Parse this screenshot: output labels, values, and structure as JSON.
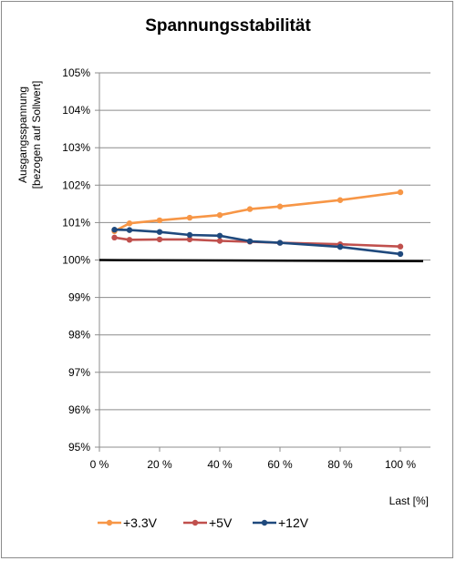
{
  "chart_data": {
    "type": "line",
    "title": "Spannungsstabilität",
    "xlabel": "Last [%]",
    "ylabel_lines": [
      "Ausgangsspannung",
      "[bezogen auf Sollwert]"
    ],
    "xlim": [
      0,
      110
    ],
    "ylim": [
      95,
      105
    ],
    "x_ticks": [
      0,
      20,
      40,
      60,
      80,
      100
    ],
    "x_tick_labels": [
      "0 %",
      "20 %",
      "40 %",
      "60 %",
      "80 %",
      "100 %"
    ],
    "y_ticks": [
      95,
      96,
      97,
      98,
      99,
      100,
      101,
      102,
      103,
      104,
      105
    ],
    "y_tick_labels": [
      "95%",
      "96%",
      "97%",
      "98%",
      "99%",
      "100%",
      "101%",
      "102%",
      "103%",
      "104%",
      "105%"
    ],
    "grid": "horizontal",
    "legend_position": "bottom-left",
    "reference_line": {
      "x": [
        0,
        110
      ],
      "y": [
        100.0,
        99.97
      ],
      "color": "#000000"
    },
    "series": [
      {
        "name": "+3.3V",
        "color": "#f79646",
        "x": [
          5,
          10,
          20,
          30,
          40,
          50,
          60,
          80,
          100
        ],
        "y": [
          100.77,
          100.98,
          101.06,
          101.13,
          101.2,
          101.36,
          101.43,
          101.6,
          101.81
        ]
      },
      {
        "name": "+5V",
        "color": "#c0504d",
        "x": [
          5,
          10,
          20,
          30,
          40,
          50,
          60,
          80,
          100
        ],
        "y": [
          100.6,
          100.54,
          100.55,
          100.55,
          100.51,
          100.49,
          100.46,
          100.42,
          100.36
        ]
      },
      {
        "name": "+12V",
        "color": "#1f497d",
        "x": [
          5,
          10,
          20,
          30,
          40,
          50,
          60,
          80,
          100
        ],
        "y": [
          100.81,
          100.8,
          100.75,
          100.67,
          100.65,
          100.5,
          100.46,
          100.35,
          100.16
        ]
      }
    ]
  }
}
